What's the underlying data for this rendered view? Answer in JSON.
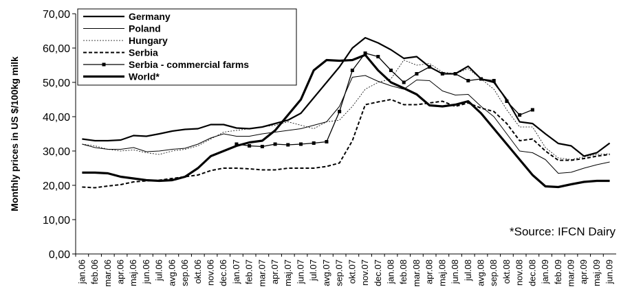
{
  "chart_data": {
    "type": "line",
    "y_label": "Monthly prices in US $/100kg milk",
    "annotation": "*Source: IFCN Dairy",
    "categories": [
      "jan.06",
      "feb.06",
      "mar.06",
      "apr.06",
      "maj.06",
      "jun.06",
      "jul.06",
      "avg.06",
      "sep.06",
      "okt.06",
      "nov.06",
      "dec.06",
      "jan.07",
      "feb.07",
      "mar.07",
      "apr.07",
      "maj.07",
      "jun.07",
      "jul.07",
      "avg.07",
      "sep.07",
      "okt.07",
      "nov.07",
      "dec.07",
      "jan.08",
      "feb.08",
      "mar.08",
      "apr.08",
      "maj.08",
      "jun.08",
      "jul.08",
      "avg.08",
      "sep.08",
      "okt.08",
      "nov.08",
      "dec.08",
      "jan.09",
      "feb.09",
      "mar.09",
      "apr.09",
      "maj.09",
      "jun.09"
    ],
    "ylim": [
      0,
      70
    ],
    "yticks": [
      {
        "value": 0,
        "label": "0,00"
      },
      {
        "value": 10,
        "label": "10,00"
      },
      {
        "value": 20,
        "label": "20,00"
      },
      {
        "value": 30,
        "label": "30,00"
      },
      {
        "value": 40,
        "label": "40,00"
      },
      {
        "value": 50,
        "label": "50,00"
      },
      {
        "value": 60,
        "label": "60,00"
      },
      {
        "value": 70,
        "label": "70,00"
      }
    ],
    "legend": "top-left",
    "series": [
      {
        "name": "Germany",
        "color": "#000000",
        "width": 2.2,
        "dash": "none",
        "marker": "none",
        "values": [
          33.5,
          33,
          33,
          33.2,
          34.5,
          34.3,
          35,
          35.8,
          36.3,
          36.5,
          37.7,
          37.7,
          36.7,
          36.5,
          37,
          38,
          39,
          41,
          45.5,
          50,
          54.5,
          60,
          63,
          61.5,
          59.5,
          57,
          57.5,
          54.5,
          52.5,
          52.5,
          54.7,
          51,
          50,
          45,
          38.5,
          38,
          35,
          32.2,
          31.5,
          28.5,
          29.5,
          32.3
        ]
      },
      {
        "name": "Poland",
        "color": "#000000",
        "width": 1,
        "dash": "none",
        "marker": "none",
        "values": [
          32,
          31,
          30.5,
          30.5,
          31,
          29.8,
          30,
          30.5,
          30.8,
          32,
          33.8,
          35,
          34.3,
          34.3,
          35,
          35.5,
          36,
          36.5,
          37.5,
          38.5,
          43,
          51.5,
          52,
          50.3,
          49,
          48,
          50.7,
          50.5,
          47.5,
          46.3,
          46.5,
          43,
          40,
          35,
          30,
          29.5,
          27.5,
          23.5,
          23.8,
          25,
          26,
          26.8
        ]
      },
      {
        "name": "Hungary",
        "color": "#000000",
        "width": 0.8,
        "dash": "2,2",
        "marker": "none",
        "values": [
          32,
          31.5,
          30.5,
          30,
          30.3,
          29.5,
          29,
          30,
          30.5,
          31.5,
          33.5,
          35.5,
          36,
          36.5,
          37,
          37.5,
          38.5,
          37.5,
          36.5,
          38.5,
          39,
          43,
          48,
          50,
          51,
          56.5,
          55,
          55.5,
          53,
          52.5,
          54,
          51,
          48,
          42,
          37,
          37,
          31,
          28,
          27.5,
          28.3,
          29,
          29.2
        ]
      },
      {
        "name": "Serbia",
        "color": "#000000",
        "width": 2,
        "dash": "5,3",
        "marker": "none",
        "values": [
          19.5,
          19.3,
          19.8,
          20.2,
          21,
          21.3,
          21.5,
          22,
          22.5,
          23,
          24.3,
          25,
          25,
          24.8,
          24.5,
          24.5,
          25,
          25,
          25,
          25.5,
          26.5,
          33,
          43.5,
          44.3,
          45,
          43.5,
          43.5,
          44,
          44.5,
          43,
          44,
          42.5,
          41.5,
          38,
          33,
          33.5,
          30,
          27.3,
          27.3,
          27.8,
          28.5,
          29
        ]
      },
      {
        "name": "Serbia - commercial farms",
        "color": "#000000",
        "width": 1.3,
        "dash": "none",
        "marker": "square",
        "values": [
          null,
          null,
          null,
          null,
          null,
          null,
          null,
          null,
          null,
          null,
          null,
          null,
          32,
          31.5,
          31.3,
          32,
          31.8,
          32,
          32.3,
          32.7,
          41.5,
          53.5,
          58.5,
          57.5,
          53.5,
          50,
          52.5,
          54.5,
          52.5,
          52.5,
          50.5,
          51,
          50.5,
          44.5,
          40.5,
          42,
          null,
          null,
          null,
          null,
          null,
          null
        ]
      },
      {
        "name": "World*",
        "color": "#000000",
        "width": 3.2,
        "dash": "none",
        "marker": "none",
        "values": [
          23.7,
          23.7,
          23.5,
          22.5,
          22,
          21.5,
          21.3,
          21.5,
          22.5,
          25,
          28.5,
          30,
          31.5,
          32.5,
          33,
          36,
          40.5,
          45,
          53.5,
          56.5,
          56.3,
          56.5,
          58,
          53.5,
          50,
          48.3,
          46.5,
          43.3,
          43,
          43.5,
          44.5,
          41,
          36.5,
          32,
          27.5,
          23,
          19.7,
          19.5,
          20.3,
          21,
          21.3,
          21.3
        ]
      }
    ]
  }
}
